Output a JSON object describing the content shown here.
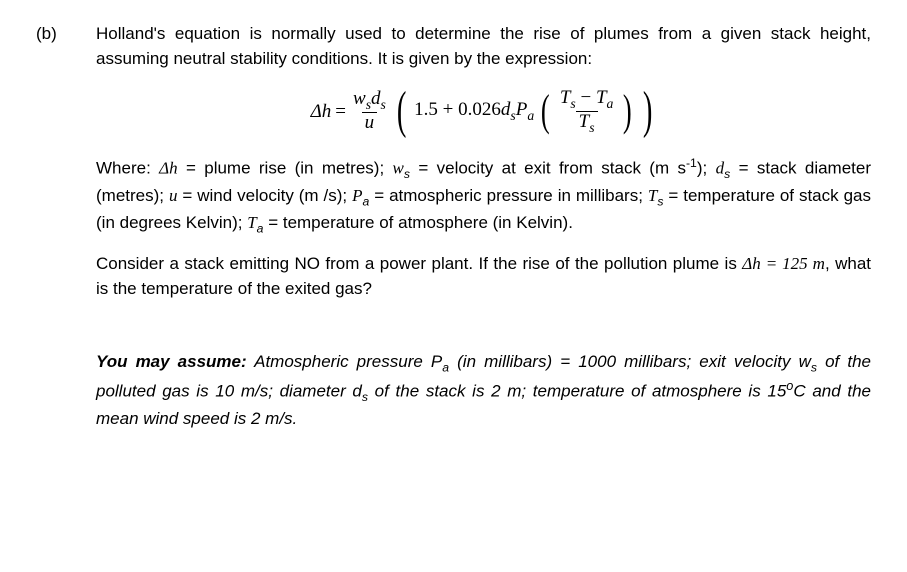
{
  "label": "(b)",
  "intro": "Holland's equation is normally used to determine the rise of plumes from a given stack height, assuming neutral stability conditions.  It is given by the expression:",
  "equation": {
    "delta_h": "Δh",
    "equals": " = ",
    "frac_num_w": "w",
    "frac_num_d": "d",
    "frac_num_sub": "s",
    "frac_den": "u",
    "const1": "1.5 + 0.026",
    "d": "d",
    "d_sub": "s",
    "P": "P",
    "P_sub": "a",
    "T": "T",
    "T_sub_s": "s",
    "T_sub_a": "a",
    "minus": " − "
  },
  "where": {
    "lead": "Where: ",
    "dh_sym": "Δh",
    "dh_txt": " = plume rise (in metres); ",
    "ws_sym": "w",
    "ws_sub": "s",
    "ws_txt": " = velocity at exit from stack (m s",
    "ws_exp": "-1",
    "ws_txt2": "); ",
    "ds_sym": "d",
    "ds_sub": "s",
    "ds_txt": " = stack diameter (metres); ",
    "u_sym": "u",
    "u_txt": " = wind velocity (m /s); ",
    "Pa_sym": "P",
    "Pa_sub": "a",
    "Pa_txt": " = atmospheric pressure in millibars; ",
    "Ts_sym": "T",
    "Ts_sub": "s",
    "Ts_txt": " = temperature of stack gas (in degrees Kelvin); ",
    "Ta_sym": "T",
    "Ta_sub": "a",
    "Ta_txt": " = temperature of atmosphere (in Kelvin)."
  },
  "question": {
    "p1": "Consider a stack emitting NO from a power plant. If the rise of the pollution plume is ",
    "dh_sym": "Δh",
    "dh_val": " = 125 m",
    "p2": ", what is the temperature of the exited gas?"
  },
  "assume": {
    "lead": "You may assume:",
    "t1": " Atmospheric pressure P",
    "Pa_sub": "a",
    "t2": " (in millibars) = 1000 millibars; exit velocity w",
    "ws_sub": "s",
    "t3": " of the polluted gas is 10 m/s; diameter d",
    "ds_sub": "s",
    "t4": " of the stack is 2 m; temperature of atmosphere is 15",
    "deg": "o",
    "t5": "C and the mean wind speed is 2 m/s."
  }
}
